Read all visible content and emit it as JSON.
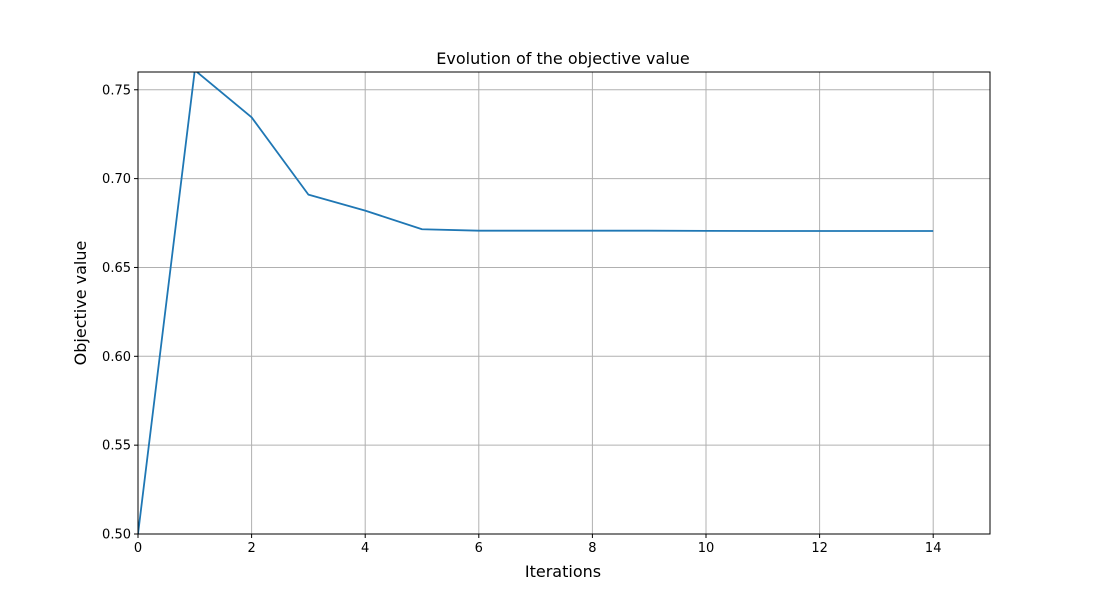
{
  "chart_data": {
    "type": "line",
    "title": "Evolution of the objective value",
    "xlabel": "Iterations",
    "ylabel": "Objective value",
    "xlim": [
      0,
      15
    ],
    "ylim": [
      0.5,
      0.76
    ],
    "xticks": [
      0,
      2,
      4,
      6,
      8,
      10,
      12,
      14
    ],
    "xtick_labels": [
      "0",
      "2",
      "4",
      "6",
      "8",
      "10",
      "12",
      "14"
    ],
    "yticks": [
      0.5,
      0.55,
      0.6,
      0.65,
      0.7,
      0.75
    ],
    "ytick_labels": [
      "0.50",
      "0.55",
      "0.60",
      "0.65",
      "0.70",
      "0.75"
    ],
    "grid": true,
    "series": [
      {
        "color": "#1f77b4",
        "x": [
          0,
          1,
          2,
          3,
          4,
          5,
          6,
          7,
          8,
          9,
          10,
          11,
          12,
          13,
          14
        ],
        "y": [
          0.5,
          0.761,
          0.7345,
          0.691,
          0.682,
          0.6715,
          0.6707,
          0.6707,
          0.6707,
          0.6707,
          0.6706,
          0.6705,
          0.6705,
          0.6705,
          0.6705
        ]
      }
    ]
  }
}
